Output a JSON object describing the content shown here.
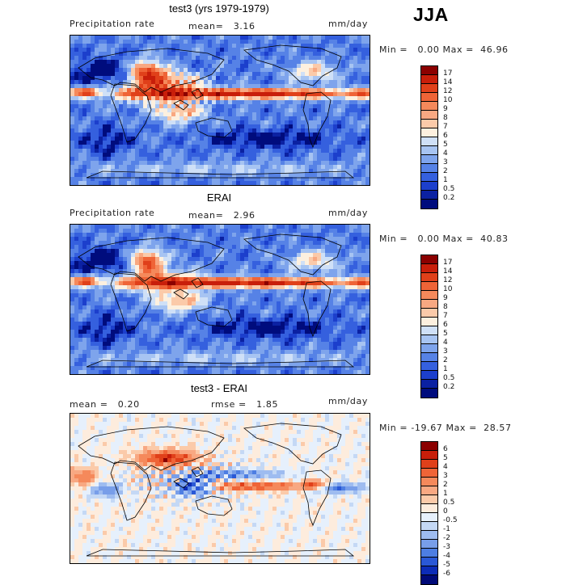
{
  "season": "JJA",
  "panels": [
    {
      "title": "test3 (yrs 1979-1979)",
      "left_label": "Precipitation rate",
      "center_label": "mean=   3.16",
      "units": "mm/day",
      "range_text": "Min =   0.00 Max =  46.96"
    },
    {
      "title": "ERAI",
      "left_label": "Precipitation rate",
      "center_label": "mean=   2.96",
      "units": "mm/day",
      "range_text": "Min =   0.00 Max =  40.83"
    },
    {
      "title": "test3 - ERAI",
      "left_label": "mean =   0.20",
      "center_label": "rmse =   1.85",
      "units": "mm/day",
      "range_text": "Min = -19.67 Max =  28.57"
    }
  ],
  "colorbars": {
    "precip": {
      "labels": [
        "17",
        "14",
        "12",
        "10",
        "9",
        "8",
        "7",
        "6",
        "5",
        "4",
        "3",
        "2",
        "1",
        "0.5",
        "0.2"
      ],
      "colors": [
        "#8b0000",
        "#c81e0a",
        "#e0401a",
        "#ef6437",
        "#f5895b",
        "#f8a882",
        "#fbcaa9",
        "#fdf0df",
        "#cfe0f7",
        "#a7c4f2",
        "#7ea4ec",
        "#5682e6",
        "#3560de",
        "#1c3fcc",
        "#0b21a2",
        "#000c7d"
      ]
    },
    "diff": {
      "labels": [
        "6",
        "5",
        "4",
        "3",
        "2",
        "1",
        "0.5",
        "0",
        "-0.5",
        "-1",
        "-2",
        "-3",
        "-4",
        "-5",
        "-6"
      ],
      "colors": [
        "#8b0000",
        "#c81e0a",
        "#e0401a",
        "#ef6437",
        "#f5895b",
        "#f8a882",
        "#fbcaa9",
        "#fdecdd",
        "#e6f0fc",
        "#c4d8f5",
        "#9ebcf0",
        "#789ee9",
        "#4d7ee3",
        "#2a58d6",
        "#0c2cb7",
        "#000a78"
      ]
    }
  },
  "chart_data": [
    {
      "type": "heatmap",
      "title": "test3 (yrs 1979-1979)",
      "variable": "Precipitation rate",
      "units": "mm/day",
      "season": "JJA",
      "mean": 3.16,
      "min": 0.0,
      "max": 46.96,
      "contour_levels": [
        0.2,
        0.5,
        1,
        2,
        3,
        4,
        5,
        6,
        7,
        8,
        9,
        10,
        12,
        14,
        17
      ]
    },
    {
      "type": "heatmap",
      "title": "ERAI",
      "variable": "Precipitation rate",
      "units": "mm/day",
      "season": "JJA",
      "mean": 2.96,
      "min": 0.0,
      "max": 40.83,
      "contour_levels": [
        0.2,
        0.5,
        1,
        2,
        3,
        4,
        5,
        6,
        7,
        8,
        9,
        10,
        12,
        14,
        17
      ]
    },
    {
      "type": "heatmap",
      "title": "test3 - ERAI",
      "units": "mm/day",
      "season": "JJA",
      "mean": 0.2,
      "rmse": 1.85,
      "min": -19.67,
      "max": 28.57,
      "contour_levels": [
        -6,
        -5,
        -4,
        -3,
        -2,
        -1,
        -0.5,
        0,
        0.5,
        1,
        2,
        3,
        4,
        5,
        6
      ]
    }
  ]
}
